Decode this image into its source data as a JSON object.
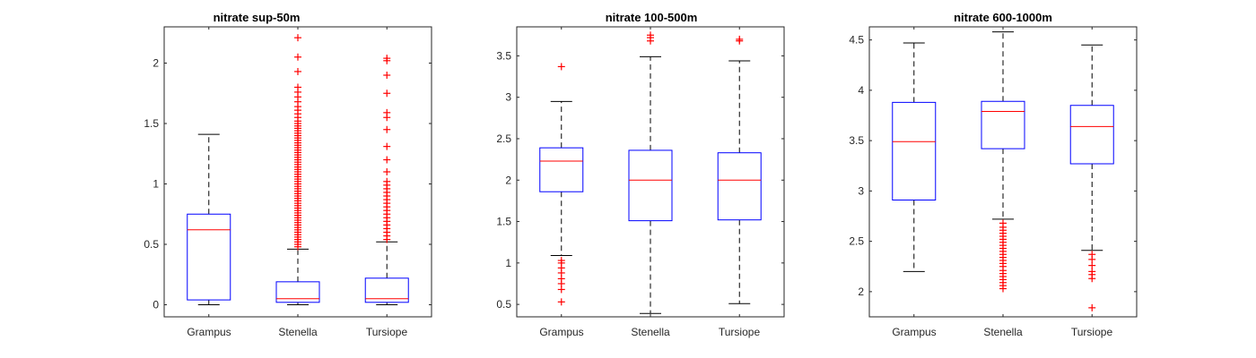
{
  "colors": {
    "box": "#0000ff",
    "median": "#ff0000",
    "whisker": "#000000",
    "outlier": "#ff0000",
    "axis": "#262626"
  },
  "chart_data": [
    {
      "type": "box",
      "title": "nitrate sup-50m",
      "xlabel": "",
      "ylabel": "",
      "categories": [
        "Grampus",
        "Stenella",
        "Tursiope"
      ],
      "ylim": [
        -0.1,
        2.3
      ],
      "yticks": [
        0,
        0.5,
        1,
        1.5,
        2
      ],
      "yticklabels": [
        "0",
        "0.5",
        "1",
        "1.5",
        "2"
      ],
      "boxes": [
        {
          "name": "Grampus",
          "whisker_low": 0.0,
          "q1": 0.04,
          "median": 0.62,
          "q3": 0.75,
          "whisker_high": 1.41,
          "outliers": []
        },
        {
          "name": "Stenella",
          "whisker_low": 0.0,
          "q1": 0.02,
          "median": 0.05,
          "q3": 0.19,
          "whisker_high": 0.46,
          "outliers": [
            0.48,
            0.5,
            0.52,
            0.54,
            0.56,
            0.58,
            0.6,
            0.62,
            0.64,
            0.66,
            0.68,
            0.7,
            0.72,
            0.74,
            0.76,
            0.78,
            0.8,
            0.82,
            0.84,
            0.86,
            0.88,
            0.9,
            0.92,
            0.94,
            0.96,
            0.98,
            1.0,
            1.02,
            1.04,
            1.06,
            1.08,
            1.1,
            1.12,
            1.14,
            1.16,
            1.18,
            1.2,
            1.22,
            1.24,
            1.26,
            1.28,
            1.3,
            1.32,
            1.34,
            1.36,
            1.38,
            1.4,
            1.42,
            1.44,
            1.46,
            1.48,
            1.5,
            1.52,
            1.55,
            1.58,
            1.61,
            1.64,
            1.68,
            1.72,
            1.76,
            1.8,
            1.93,
            2.05,
            2.21
          ]
        },
        {
          "name": "Tursiope",
          "whisker_low": 0.0,
          "q1": 0.02,
          "median": 0.05,
          "q3": 0.22,
          "whisker_high": 0.52,
          "outliers": [
            0.54,
            0.57,
            0.6,
            0.63,
            0.66,
            0.69,
            0.72,
            0.75,
            0.78,
            0.81,
            0.84,
            0.87,
            0.9,
            0.93,
            0.96,
            0.99,
            1.02,
            1.1,
            1.2,
            1.31,
            1.45,
            1.55,
            1.59,
            1.75,
            1.9,
            2.02,
            2.04
          ]
        }
      ]
    },
    {
      "type": "box",
      "title": "nitrate 100-500m",
      "xlabel": "",
      "ylabel": "",
      "categories": [
        "Grampus",
        "Stenella",
        "Tursiope"
      ],
      "ylim": [
        0.35,
        3.85
      ],
      "yticks": [
        0.5,
        1,
        1.5,
        2,
        2.5,
        3,
        3.5
      ],
      "yticklabels": [
        "0.5",
        "1",
        "1.5",
        "2",
        "2.5",
        "3",
        "3.5"
      ],
      "boxes": [
        {
          "name": "Grampus",
          "whisker_low": 1.09,
          "q1": 1.86,
          "median": 2.23,
          "q3": 2.39,
          "whisker_high": 2.95,
          "outliers": [
            0.53,
            0.68,
            0.75,
            0.81,
            0.88,
            0.94,
            1.0,
            1.03,
            3.37
          ]
        },
        {
          "name": "Stenella",
          "whisker_low": 0.39,
          "q1": 1.51,
          "median": 2.0,
          "q3": 2.36,
          "whisker_high": 3.49,
          "outliers": [
            3.68,
            3.72,
            3.75
          ]
        },
        {
          "name": "Tursiope",
          "whisker_low": 0.51,
          "q1": 1.52,
          "median": 2.0,
          "q3": 2.33,
          "whisker_high": 3.44,
          "outliers": [
            3.68,
            3.7
          ]
        }
      ]
    },
    {
      "type": "box",
      "title": "nitrate 600-1000m",
      "xlabel": "",
      "ylabel": "",
      "categories": [
        "Grampus",
        "Stenella",
        "Tursiope"
      ],
      "ylim": [
        1.75,
        4.63
      ],
      "yticks": [
        2,
        2.5,
        3,
        3.5,
        4,
        4.5
      ],
      "yticklabels": [
        "2",
        "2.5",
        "3",
        "3.5",
        "4",
        "4.5"
      ],
      "boxes": [
        {
          "name": "Grampus",
          "whisker_low": 2.2,
          "q1": 2.91,
          "median": 3.49,
          "q3": 3.88,
          "whisker_high": 4.47,
          "outliers": []
        },
        {
          "name": "Stenella",
          "whisker_low": 2.72,
          "q1": 3.42,
          "median": 3.79,
          "q3": 3.89,
          "whisker_high": 4.58,
          "outliers": [
            2.03,
            2.06,
            2.09,
            2.12,
            2.15,
            2.18,
            2.21,
            2.25,
            2.28,
            2.31,
            2.34,
            2.37,
            2.4,
            2.43,
            2.46,
            2.49,
            2.52,
            2.55,
            2.58,
            2.61,
            2.64,
            2.68
          ]
        },
        {
          "name": "Tursiope",
          "whisker_low": 2.41,
          "q1": 3.27,
          "median": 3.64,
          "q3": 3.85,
          "whisker_high": 4.45,
          "outliers": [
            1.84,
            2.13,
            2.17,
            2.2,
            2.26,
            2.32,
            2.37
          ]
        }
      ]
    }
  ]
}
